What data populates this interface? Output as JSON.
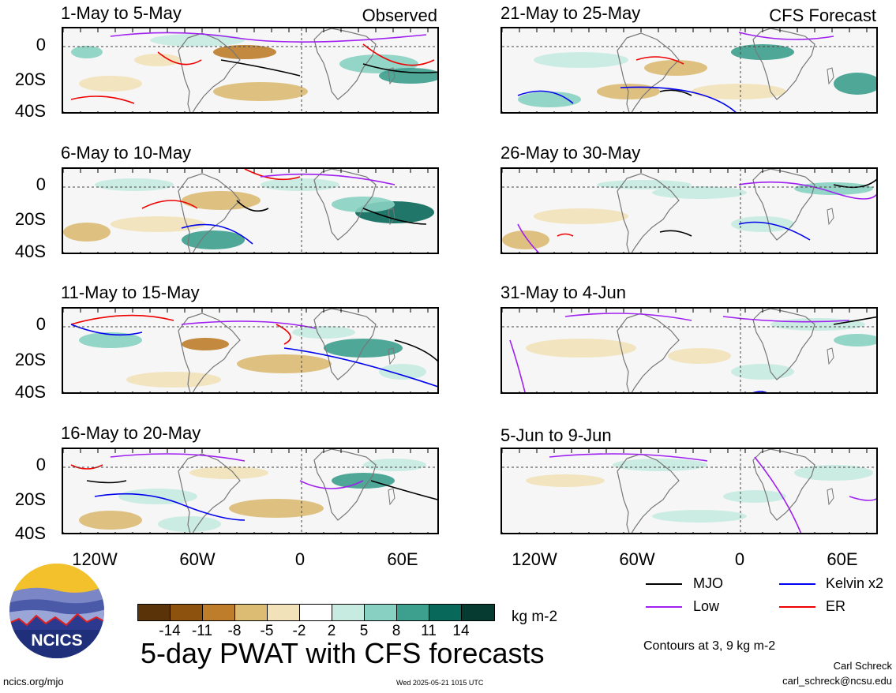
{
  "panels": [
    {
      "title": "1-May to 5-May",
      "tag": "Observed",
      "col": 0,
      "row": 0
    },
    {
      "title": "6-May to 10-May",
      "tag": "",
      "col": 0,
      "row": 1
    },
    {
      "title": "11-May to 15-May",
      "tag": "",
      "col": 0,
      "row": 2
    },
    {
      "title": "16-May to 20-May",
      "tag": "",
      "col": 0,
      "row": 3
    },
    {
      "title": "21-May to 25-May",
      "tag": "CFS Forecast",
      "col": 1,
      "row": 0
    },
    {
      "title": "26-May to 30-May",
      "tag": "",
      "col": 1,
      "row": 1
    },
    {
      "title": "31-May to 4-Jun",
      "tag": "",
      "col": 1,
      "row": 2
    },
    {
      "title": "5-Jun to 9-Jun",
      "tag": "",
      "col": 1,
      "row": 3
    }
  ],
  "lat_ticks": [
    "0",
    "20S",
    "40S"
  ],
  "lon_ticks": [
    "120W",
    "60W",
    "0",
    "60E"
  ],
  "colorbar": {
    "colors": [
      "#5a3309",
      "#8e520f",
      "#bd7d2b",
      "#dcbb73",
      "#f2e2b9",
      "#ffffff",
      "#c7ebe1",
      "#88d1c2",
      "#3d9f8e",
      "#08685a",
      "#053b30"
    ],
    "labels": [
      "-14",
      "-11",
      "-8",
      "-5",
      "-2",
      "2",
      "5",
      "8",
      "11",
      "14"
    ],
    "units": "kg m-2"
  },
  "legend": [
    {
      "label": "MJO",
      "color": "#000000"
    },
    {
      "label": "Kelvin x2",
      "color": "#0000ee"
    },
    {
      "label": "Low",
      "color": "#a020f0"
    },
    {
      "label": "ER",
      "color": "#ee0000"
    }
  ],
  "contours_note": "Contours at 3, 9 kg m-2",
  "main_title": "5-day PWAT with CFS forecasts",
  "logo_text": "NCICS",
  "footer": {
    "url": "ncics.org/mjo",
    "timestamp": "Wed 2025-05-21 1015 UTC",
    "author": "Carl Schreck",
    "email": "carl_schreck@ncsu.edu"
  }
}
